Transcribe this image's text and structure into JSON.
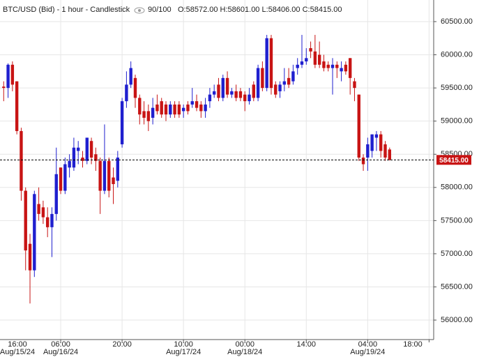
{
  "chart_data": {
    "type": "candlestick",
    "title": "BTC/USD (Bid) - 1 hour - Candlestick",
    "counter": "90/100",
    "ohlc_text": "O:58572.00 H:58601.00 L:58406.00 C:58415.00",
    "up_color": "#1f1fcf",
    "down_color": "#c81414",
    "grid": true,
    "x": [
      1,
      2,
      3,
      4,
      5,
      6,
      7,
      8,
      9,
      10,
      11,
      12,
      13,
      14,
      15,
      16,
      17,
      18,
      19,
      20,
      21,
      22,
      23,
      24,
      25,
      26,
      27,
      28,
      29,
      30,
      31,
      32,
      33,
      34,
      35,
      36,
      37,
      38,
      39,
      40,
      41,
      42,
      43,
      44,
      45,
      46,
      47,
      48,
      49,
      50,
      51,
      52,
      53,
      54,
      55,
      56,
      57,
      58,
      59,
      60,
      61,
      62,
      63,
      64,
      65,
      66,
      67,
      68,
      69,
      70,
      71,
      72,
      73,
      74,
      75,
      76,
      77,
      78,
      79,
      80,
      81,
      82,
      83,
      84,
      85,
      86,
      87,
      88,
      89
    ],
    "open": [
      59520,
      59500,
      59850,
      59600,
      58850,
      57950,
      57150,
      56750,
      57750,
      57700,
      57550,
      57400,
      57600,
      58300,
      57950,
      58300,
      58300,
      58550,
      58450,
      58400,
      58700,
      58500,
      58400,
      57950,
      58400,
      58150,
      58100,
      58650,
      59300,
      59550,
      59650,
      59350,
      59150,
      59150,
      59050,
      59250,
      59300,
      59250,
      59100,
      59250,
      59250,
      59150,
      59250,
      59250,
      59300,
      59250,
      59150,
      59300,
      59400,
      59550,
      59350,
      59650,
      59400,
      59450,
      59450,
      59400,
      59300,
      59550,
      59350,
      59800,
      59500,
      60250,
      59550,
      59450,
      59550,
      59650,
      59600,
      59800,
      59850,
      59900,
      60100,
      60050,
      60000,
      59900,
      59850,
      59800,
      59850,
      59750,
      59850,
      59950,
      59600,
      59400,
      58450,
      58450,
      58550,
      58750,
      58800,
      58650,
      58572
    ],
    "high": [
      59600,
      59870,
      59900,
      59600,
      58900,
      58000,
      57300,
      57950,
      58000,
      57800,
      57700,
      57700,
      58600,
      58300,
      58450,
      58500,
      58750,
      58700,
      58550,
      58750,
      58750,
      58600,
      58450,
      58950,
      58450,
      58300,
      58550,
      59350,
      59750,
      59900,
      59700,
      59400,
      59300,
      59250,
      59350,
      59400,
      59350,
      59300,
      59300,
      59300,
      59300,
      59250,
      59300,
      59500,
      59400,
      59300,
      59350,
      59500,
      59550,
      59650,
      59700,
      59750,
      59500,
      59550,
      59500,
      59450,
      59500,
      59600,
      59850,
      59900,
      60300,
      60300,
      59600,
      59600,
      59800,
      59800,
      59850,
      59950,
      60300,
      60100,
      60200,
      60300,
      60200,
      60000,
      59900,
      59950,
      59900,
      59900,
      59900,
      59950,
      59650,
      59400,
      58500,
      58750,
      58800,
      58850,
      58850,
      58700,
      58601
    ],
    "low": [
      59300,
      59350,
      59450,
      58800,
      57800,
      56750,
      56250,
      56650,
      57500,
      57450,
      57250,
      56950,
      57500,
      57900,
      57900,
      58150,
      58250,
      58350,
      58300,
      58350,
      58350,
      58250,
      57600,
      57900,
      57850,
      57750,
      58000,
      58600,
      59200,
      59500,
      59200,
      58950,
      58950,
      58850,
      58950,
      59100,
      59050,
      59000,
      59050,
      59050,
      59050,
      59050,
      59100,
      59200,
      59150,
      59050,
      59050,
      59200,
      59350,
      59300,
      59300,
      59350,
      59350,
      59300,
      59300,
      59150,
      59250,
      59300,
      59300,
      59450,
      59450,
      59400,
      59350,
      59350,
      59450,
      59500,
      59550,
      59700,
      59800,
      59850,
      59950,
      59800,
      59800,
      59750,
      59750,
      59400,
      59650,
      59600,
      59700,
      59400,
      59300,
      58400,
      58250,
      58250,
      58450,
      58550,
      58450,
      58400,
      58406
    ],
    "close": [
      59500,
      59850,
      59550,
      58850,
      57950,
      57050,
      56750,
      57900,
      57600,
      57550,
      57400,
      57600,
      58200,
      57950,
      58350,
      58400,
      58600,
      58600,
      58400,
      58750,
      58450,
      58400,
      57950,
      58400,
      57950,
      58050,
      58450,
      59300,
      59550,
      59800,
      59350,
      59100,
      59050,
      59000,
      59200,
      59150,
      59100,
      59100,
      59250,
      59100,
      59100,
      59200,
      59150,
      59300,
      59200,
      59150,
      59250,
      59400,
      59450,
      59350,
      59650,
      59400,
      59450,
      59350,
      59350,
      59300,
      59400,
      59350,
      59800,
      59500,
      60250,
      59500,
      59400,
      59550,
      59600,
      59550,
      59750,
      59850,
      59900,
      59950,
      60050,
      59850,
      59850,
      59800,
      59800,
      59850,
      59800,
      59800,
      59750,
      59650,
      59500,
      58450,
      58350,
      58650,
      58800,
      58800,
      58550,
      58450,
      58415
    ],
    "xlim": [
      0.16,
      99.05
    ],
    "xticks": [
      {
        "value": 0,
        "label": "16:00",
        "date": "Aug/15/24"
      },
      {
        "value": 14,
        "label": "06:00",
        "date": "Aug/16/24"
      },
      {
        "value": 28,
        "label": "20:00"
      },
      {
        "value": 42,
        "label": "10:00",
        "date": "Aug/17/24"
      },
      {
        "value": 56,
        "label": "00:00",
        "date": "Aug/18/24"
      },
      {
        "value": 70,
        "label": "14:00"
      },
      {
        "value": 84,
        "label": "04:00",
        "date": "Aug/19/24"
      },
      {
        "value": 98,
        "label": "18:00"
      }
    ],
    "ylim": [
      55706,
      60826
    ],
    "yticks": [
      {
        "value": 56000,
        "label": "56000.00"
      },
      {
        "value": 56500,
        "label": "56500.00"
      },
      {
        "value": 57000,
        "label": "57000.00"
      },
      {
        "value": 57500,
        "label": "57500.00"
      },
      {
        "value": 58000,
        "label": "58000.00"
      },
      {
        "value": 58500,
        "label": "58500.00"
      },
      {
        "value": 59000,
        "label": "59000.00"
      },
      {
        "value": 59500,
        "label": "59500.00"
      },
      {
        "value": 60000,
        "label": "60000.00"
      },
      {
        "value": 60500,
        "label": "60500.00"
      }
    ],
    "last_price": {
      "value": 58415,
      "label": "58415.00"
    }
  }
}
